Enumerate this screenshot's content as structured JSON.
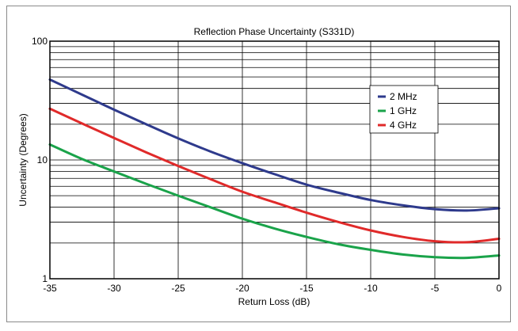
{
  "chart_data": {
    "type": "line",
    "title": "Reflection Phase Uncertainty (S331D)",
    "xlabel": "Return Loss (dB)",
    "ylabel": "Uncertainty (Degrees)",
    "xlim": [
      -35,
      0
    ],
    "ylim": [
      1,
      100
    ],
    "y_scale": "log",
    "x_ticks": [
      -35,
      -30,
      -25,
      -20,
      -15,
      -10,
      -5,
      0
    ],
    "y_ticks": [
      1,
      10,
      100
    ],
    "x_tick_labels": [
      "-35",
      "-30",
      "-25",
      "-20",
      "-15",
      "-10",
      "-5",
      "0"
    ],
    "y_tick_labels": [
      "1",
      "10",
      "100"
    ],
    "grid": true,
    "legend_position": "upper-right-inside",
    "series": [
      {
        "name": "2 MHz",
        "color": "#2e3a8c",
        "x": [
          -35,
          -32.5,
          -30,
          -27.5,
          -25,
          -22.5,
          -20,
          -17.5,
          -15,
          -12.5,
          -10,
          -7.5,
          -5,
          -2.5,
          0
        ],
        "y": [
          47.5,
          35.5,
          26.5,
          20.0,
          15.2,
          11.8,
          9.4,
          7.6,
          6.2,
          5.3,
          4.6,
          4.15,
          3.85,
          3.75,
          3.92
        ]
      },
      {
        "name": "1 GHz",
        "color": "#1aa34a",
        "x": [
          -35,
          -32.5,
          -30,
          -27.5,
          -25,
          -22.5,
          -20,
          -17.5,
          -15,
          -12.5,
          -10,
          -7.5,
          -5,
          -2.5,
          0
        ],
        "y": [
          13.5,
          10.2,
          8.0,
          6.3,
          5.0,
          4.0,
          3.2,
          2.65,
          2.25,
          1.95,
          1.75,
          1.6,
          1.52,
          1.5,
          1.57
        ]
      },
      {
        "name": "4 GHz",
        "color": "#e02a2a",
        "x": [
          -35,
          -32.5,
          -30,
          -27.5,
          -25,
          -22.5,
          -20,
          -17.5,
          -15,
          -12.5,
          -10,
          -7.5,
          -5,
          -2.5,
          0
        ],
        "y": [
          27.0,
          20.3,
          15.3,
          11.6,
          8.9,
          6.9,
          5.4,
          4.4,
          3.6,
          3.0,
          2.55,
          2.25,
          2.07,
          2.03,
          2.17
        ]
      }
    ]
  }
}
